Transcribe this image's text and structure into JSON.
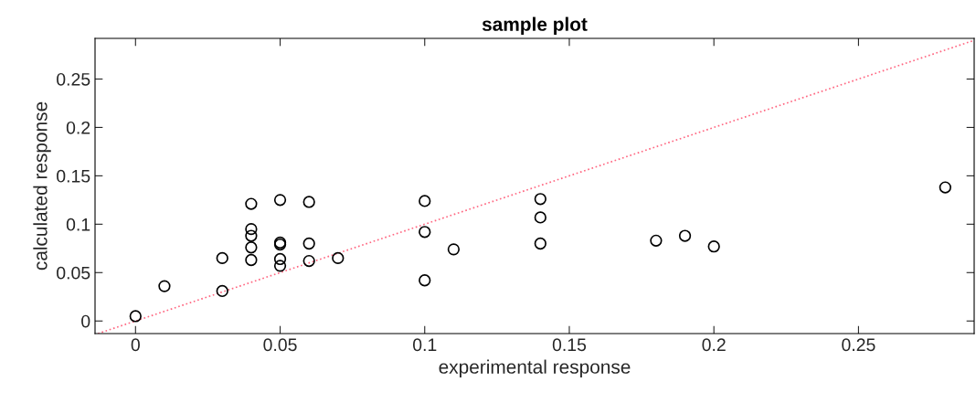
{
  "chart_data": {
    "type": "scatter",
    "title": "sample plot",
    "xlabel": "experimental response",
    "ylabel": "calculated response",
    "series": [
      {
        "color": "#000000",
        "marker": "circle",
        "x": [
          0,
          0.01,
          0.03,
          0.03,
          0.04,
          0.04,
          0.04,
          0.04,
          0.04,
          0.05,
          0.05,
          0.05,
          0.05,
          0.05,
          0.06,
          0.06,
          0.06,
          0.07,
          0.1,
          0.1,
          0.1,
          0.11,
          0.14,
          0.14,
          0.14,
          0.18,
          0.19,
          0.2,
          0.28
        ],
        "values": [
          0.005,
          0.036,
          0.065,
          0.031,
          0.121,
          0.095,
          0.088,
          0.076,
          0.063,
          0.125,
          0.081,
          0.079,
          0.064,
          0.057,
          0.123,
          0.08,
          0.062,
          0.065,
          0.124,
          0.092,
          0.042,
          0.074,
          0.126,
          0.107,
          0.08,
          0.083,
          0.088,
          0.077,
          0.138
        ]
      },
      {
        "type": "line",
        "color": "#ff6680",
        "line_style": "dotted",
        "x": [
          -0.013,
          0.29
        ],
        "values": [
          -0.013,
          0.29
        ]
      }
    ],
    "xlim": [
      -0.014,
      0.29
    ],
    "ylim": [
      -0.013,
      0.292
    ],
    "xticks": [
      0,
      0.05,
      0.1,
      0.15,
      0.2,
      0.25
    ],
    "yticks": [
      0,
      0.05,
      0.1,
      0.15,
      0.2,
      0.25
    ],
    "grid": false,
    "legend": false
  }
}
